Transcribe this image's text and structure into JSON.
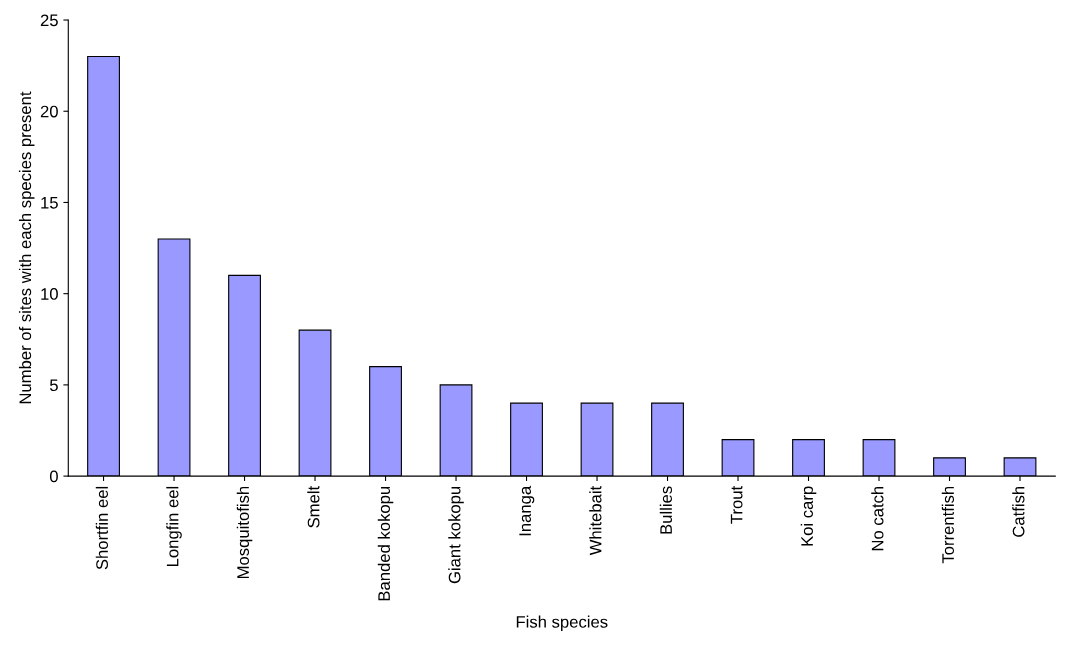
{
  "chart_data": {
    "type": "bar",
    "xlabel": "Fish species",
    "ylabel": "Number of sites with each species present",
    "categories": [
      "Shortfin eel",
      "Longfin eel",
      "Mosquitofish",
      "Smelt",
      "Banded kokopu",
      "Giant kokopu",
      "Inanga",
      "Whitebait",
      "Bullies",
      "Trout",
      "Koi carp",
      "No catch",
      "Torrentfish",
      "Catfish"
    ],
    "values": [
      23,
      13,
      11,
      8,
      6,
      5,
      4,
      4,
      4,
      2,
      2,
      2,
      1,
      1
    ],
    "color": "#9999ff",
    "ylim": [
      0,
      25
    ],
    "yticks": [
      0,
      5,
      10,
      15,
      20,
      25
    ],
    "grid": false
  }
}
